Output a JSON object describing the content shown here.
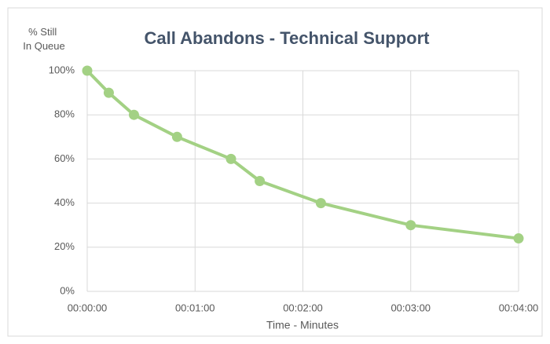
{
  "chart_data": {
    "type": "line",
    "title": "Call Abandons - Technical Support",
    "ylabel": [
      "% Still",
      "In Queue"
    ],
    "xlabel": "Time - Minutes",
    "series": [
      {
        "name": "% Still In Queue",
        "color": "#a3d184",
        "x": [
          0,
          12,
          26,
          50,
          80,
          96,
          130,
          180,
          240
        ],
        "values": [
          100,
          90,
          80,
          70,
          60,
          50,
          40,
          30,
          24
        ]
      }
    ],
    "xlim": [
      0,
      240
    ],
    "xticks": [
      {
        "value": 0,
        "label": "00:00:00"
      },
      {
        "value": 60,
        "label": "00:01:00"
      },
      {
        "value": 120,
        "label": "00:02:00"
      },
      {
        "value": 180,
        "label": "00:03:00"
      },
      {
        "value": 240,
        "label": "00:04:00"
      }
    ],
    "ylim": [
      0,
      100
    ],
    "yticks": [
      {
        "value": 0,
        "label": "0%"
      },
      {
        "value": 20,
        "label": "20%"
      },
      {
        "value": 40,
        "label": "40%"
      },
      {
        "value": 60,
        "label": "60%"
      },
      {
        "value": 80,
        "label": "80%"
      },
      {
        "value": 100,
        "label": "100%"
      }
    ],
    "grid": true
  }
}
